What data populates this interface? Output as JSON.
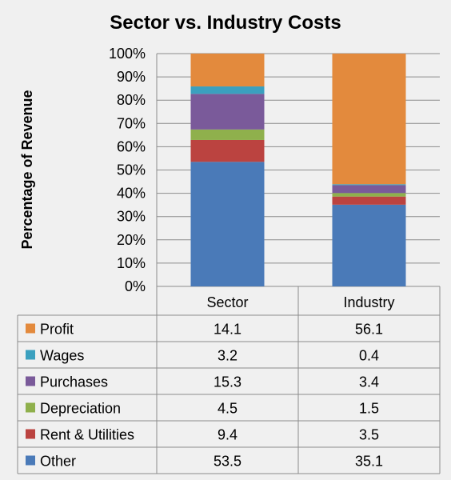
{
  "chart_data": {
    "type": "bar",
    "stacked": true,
    "title": "Sector vs. Industry Costs",
    "xlabel": "",
    "ylabel": "Percentage of Revenue",
    "ylim": [
      0,
      100
    ],
    "yticks": [
      "0%",
      "10%",
      "20%",
      "30%",
      "40%",
      "50%",
      "60%",
      "70%",
      "80%",
      "90%",
      "100%"
    ],
    "categories": [
      "Sector",
      "Industry"
    ],
    "grid": true,
    "data_table": true,
    "series": [
      {
        "name": "Other",
        "color": "#4a7ab8",
        "values": [
          53.5,
          35.1
        ]
      },
      {
        "name": "Rent & Utilities",
        "color": "#bb4340",
        "values": [
          9.4,
          3.5
        ]
      },
      {
        "name": "Depreciation",
        "color": "#8fb04c",
        "values": [
          4.5,
          1.5
        ]
      },
      {
        "name": "Purchases",
        "color": "#7a5a9a",
        "values": [
          15.3,
          3.4
        ]
      },
      {
        "name": "Wages",
        "color": "#3ba0bf",
        "values": [
          3.2,
          0.4
        ]
      },
      {
        "name": "Profit",
        "color": "#e38a3d",
        "values": [
          14.1,
          56.1
        ]
      }
    ],
    "table_rows": [
      {
        "name": "Profit",
        "values": [
          "14.1",
          "56.1"
        ]
      },
      {
        "name": "Wages",
        "values": [
          "3.2",
          "0.4"
        ]
      },
      {
        "name": "Purchases",
        "values": [
          "15.3",
          "3.4"
        ]
      },
      {
        "name": "Depreciation",
        "values": [
          "4.5",
          "1.5"
        ]
      },
      {
        "name": "Rent & Utilities",
        "values": [
          "9.4",
          "3.5"
        ]
      },
      {
        "name": "Other",
        "values": [
          "53.5",
          "35.1"
        ]
      }
    ]
  }
}
